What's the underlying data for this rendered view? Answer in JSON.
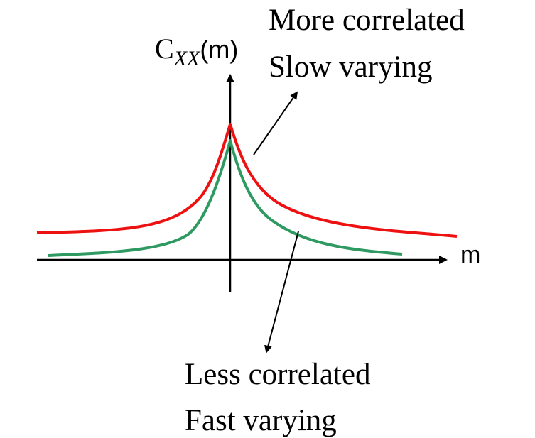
{
  "y_axis_label": {
    "main": "C",
    "subscript": "XX",
    "argument": "(m)"
  },
  "x_axis_label": "m",
  "curves": [
    {
      "name": "more-correlated",
      "color": "#ee1111",
      "annotation_lines": [
        "More correlated",
        "Slow varying"
      ]
    },
    {
      "name": "less-correlated",
      "color": "#2e9a62",
      "annotation_lines": [
        "Less correlated",
        "Fast varying"
      ]
    }
  ]
}
